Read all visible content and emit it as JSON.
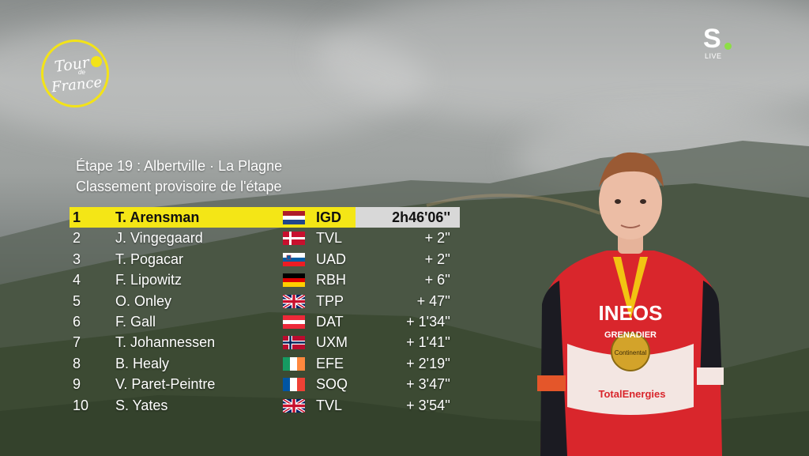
{
  "broadcast": {
    "event_logo_line1": "Tour",
    "event_logo_line2": "France",
    "event_logo_small": "de",
    "channel_logo": "S",
    "channel_live": "LIVE"
  },
  "stage": {
    "title": "Étape 19 : Albertville · La Plagne",
    "subtitle": "Classement provisoire de l'étape"
  },
  "results": [
    {
      "pos": "1",
      "name": "T. Arensman",
      "flag": "netherlands-flag",
      "team": "IGD",
      "time": "2h46'06''"
    },
    {
      "pos": "2",
      "name": "J. Vingegaard",
      "flag": "denmark-flag",
      "team": "TVL",
      "time": "+ 2''"
    },
    {
      "pos": "3",
      "name": "T. Pogacar",
      "flag": "slovenia-flag",
      "team": "UAD",
      "time": "+ 2''"
    },
    {
      "pos": "4",
      "name": "F. Lipowitz",
      "flag": "germany-flag",
      "team": "RBH",
      "time": "+ 6''"
    },
    {
      "pos": "5",
      "name": "O. Onley",
      "flag": "uk-flag",
      "team": "TPP",
      "time": "+ 47''"
    },
    {
      "pos": "6",
      "name": "F. Gall",
      "flag": "austria-flag",
      "team": "DAT",
      "time": "+ 1'34''"
    },
    {
      "pos": "7",
      "name": "T. Johannessen",
      "flag": "norway-flag",
      "team": "UXM",
      "time": "+ 1'41''"
    },
    {
      "pos": "8",
      "name": "B. Healy",
      "flag": "ireland-flag",
      "team": "EFE",
      "time": "+ 2'19''"
    },
    {
      "pos": "9",
      "name": "V. Paret-Peintre",
      "flag": "france-flag",
      "team": "SOQ",
      "time": "+ 3'47''"
    },
    {
      "pos": "10",
      "name": "S. Yates",
      "flag": "uk-flag",
      "team": "TVL",
      "time": "+ 3'54''"
    }
  ],
  "jersey": {
    "team_text": "INEOS",
    "team_sub": "GRENADIER",
    "sponsor": "TotalEnergies",
    "medal_text": "Continental"
  },
  "colors": {
    "leader_highlight": "#f4e616",
    "leader_time_bg": "#d8d8d8",
    "logo_yellow": "#f3e318",
    "channel_dot": "#8dde46",
    "jersey_red": "#d9262c"
  }
}
